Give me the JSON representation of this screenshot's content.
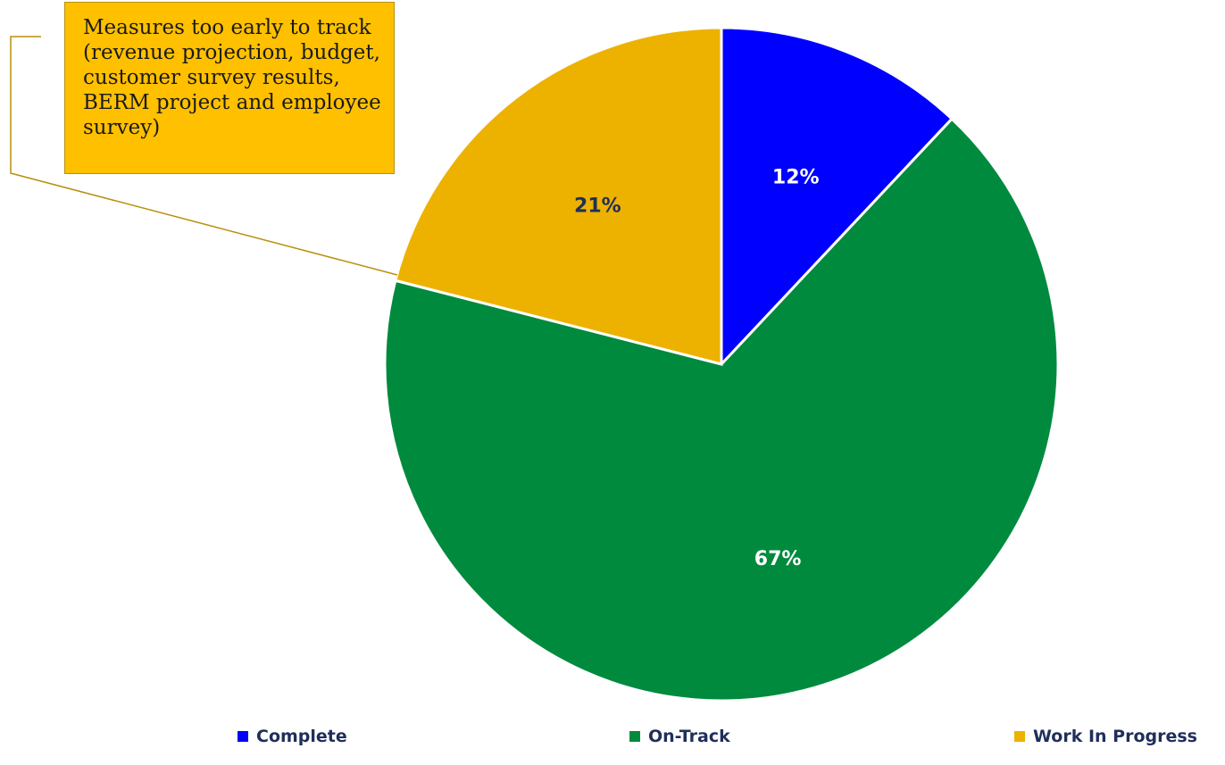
{
  "chart_data": {
    "type": "pie",
    "categories": [
      "Complete",
      "On-Track",
      "Work In Progress"
    ],
    "values": [
      12,
      67,
      21
    ],
    "data_labels": [
      "12%",
      "67%",
      "21%"
    ],
    "colors": [
      "#0000ff",
      "#008a3e",
      "#edb200"
    ],
    "label_colors": [
      "#ffffff",
      "#ffffff",
      "#1f2f5a"
    ],
    "start": "12 o'clock, clockwise",
    "legend_position": "bottom"
  },
  "annotation": {
    "text": "Measures too early to track (revenue projection, budget, customer survey results, BERM project and employee survey)",
    "target": "Work In Progress"
  }
}
